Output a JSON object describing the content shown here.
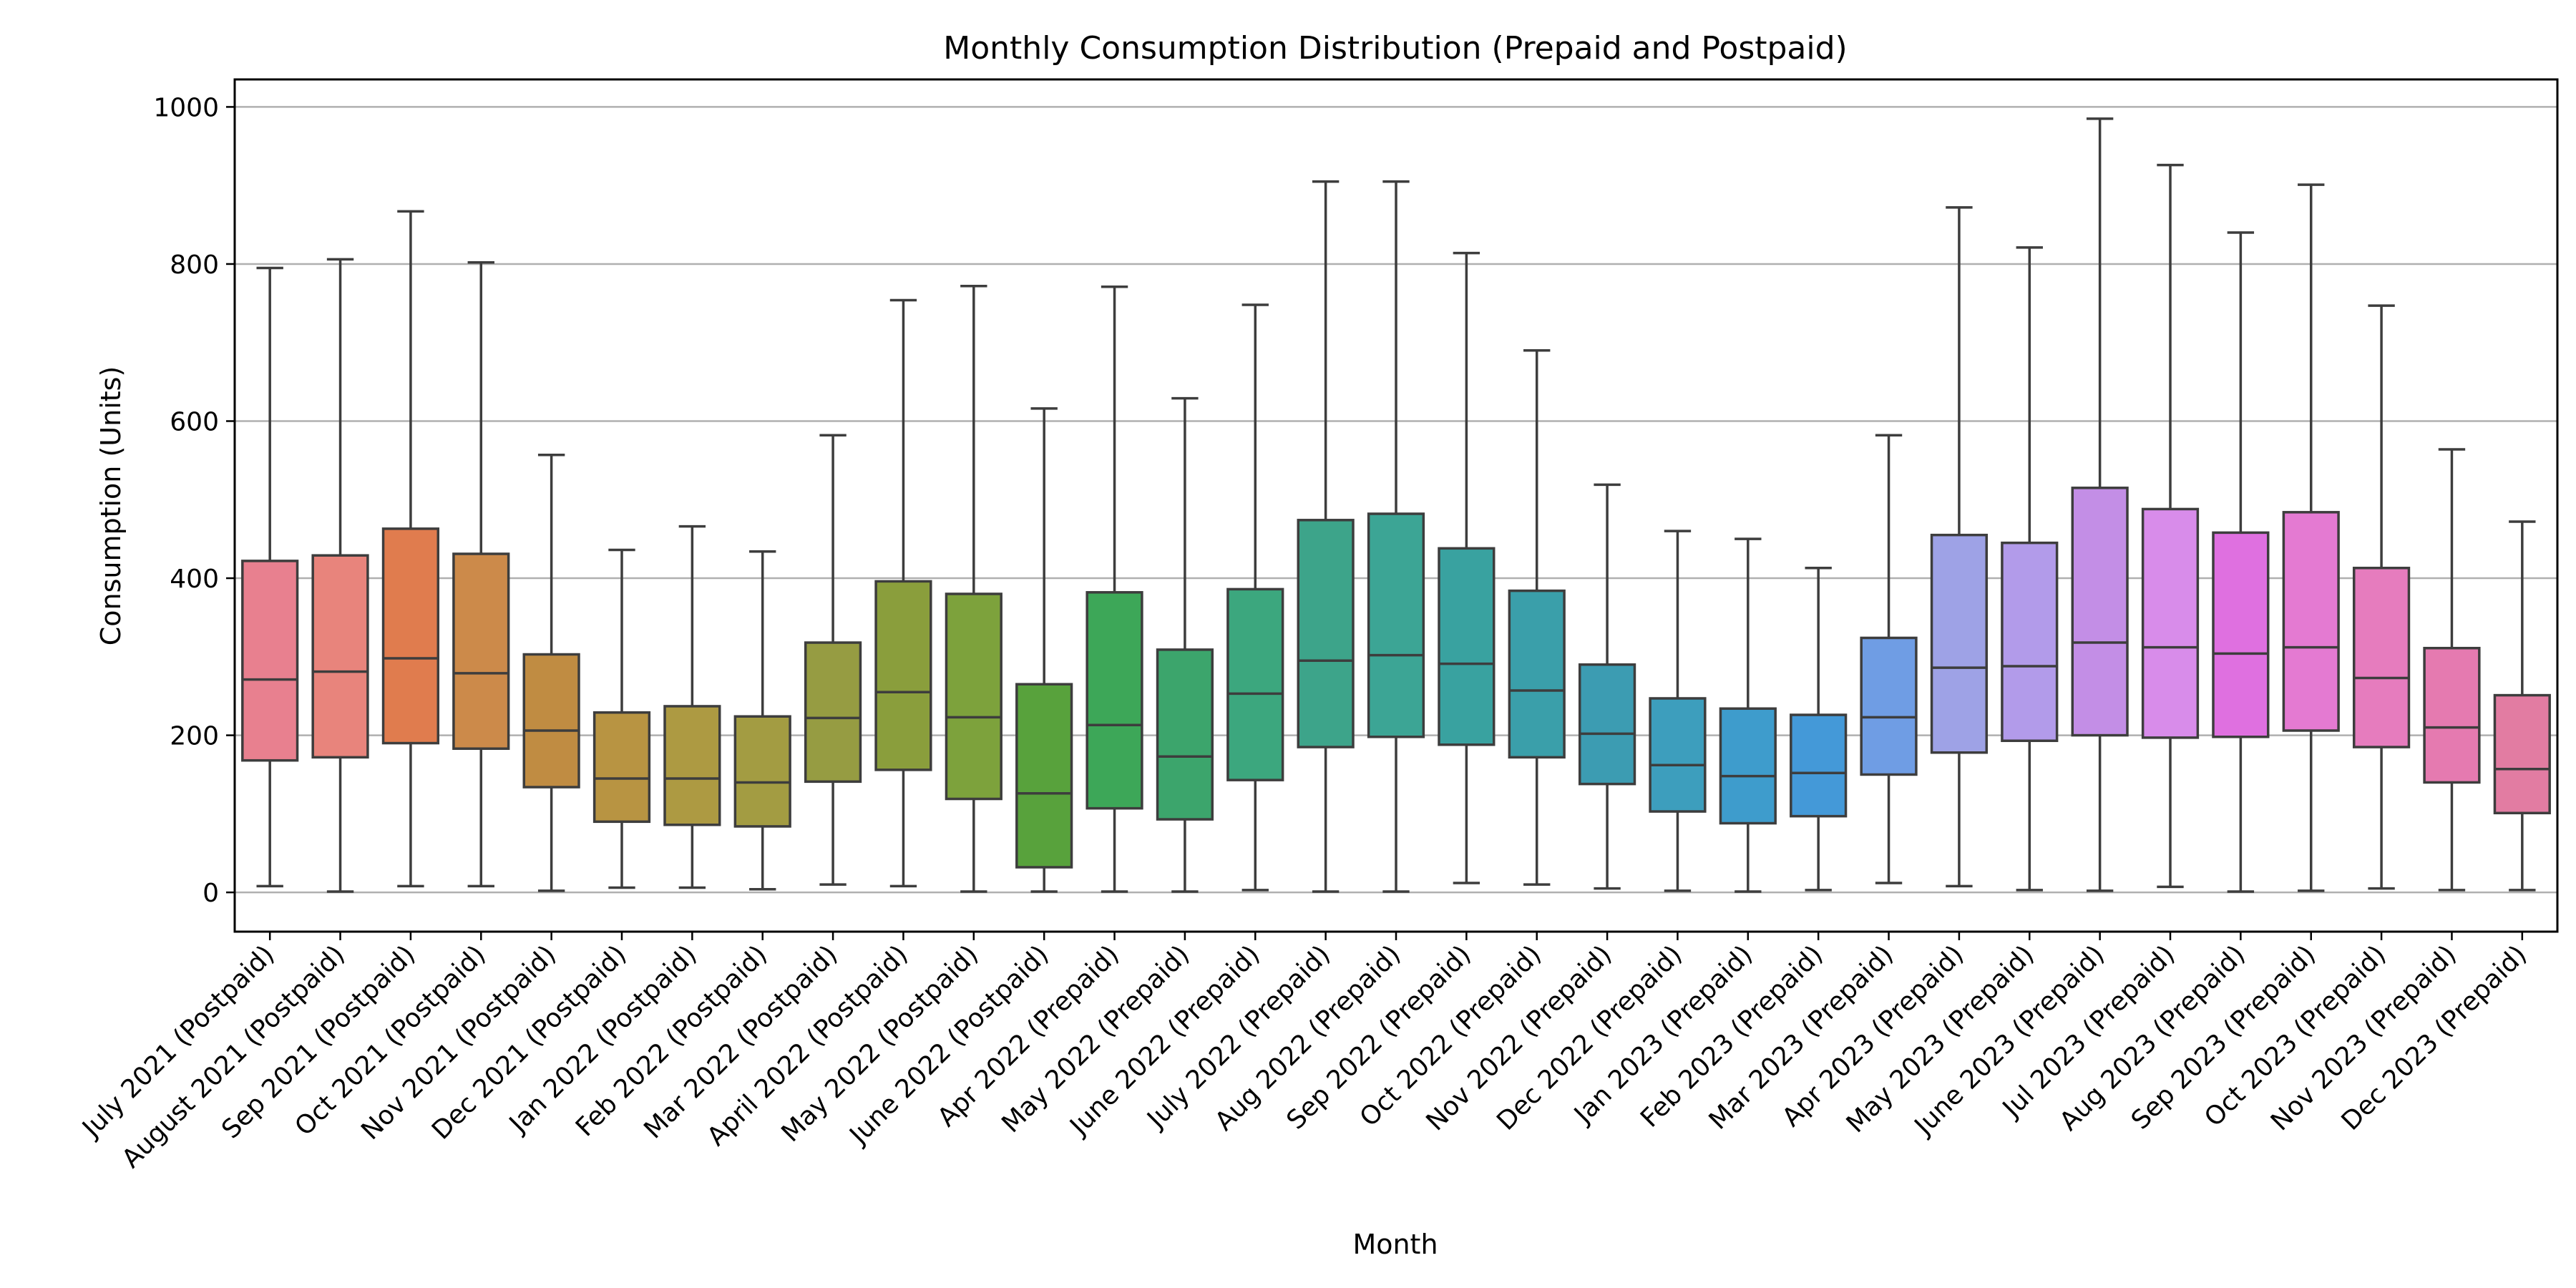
{
  "chart_data": {
    "type": "boxplot",
    "title": "Monthly Consumption Distribution (Prepaid and Postpaid)",
    "xlabel": "Month",
    "ylabel": "Consumption (Units)",
    "ylim": [
      -50,
      1035
    ],
    "yticks": [
      0,
      200,
      400,
      600,
      800,
      1000
    ],
    "grid": "horizontal",
    "categories": [
      "July 2021 (Postpaid)",
      "August 2021 (Postpaid)",
      "Sep 2021 (Postpaid)",
      "Oct 2021 (Postpaid)",
      "Nov 2021 (Postpaid)",
      "Dec 2021 (Postpaid)",
      "Jan 2022 (Postpaid)",
      "Feb 2022 (Postpaid)",
      "Mar 2022 (Postpaid)",
      "April 2022 (Postpaid)",
      "May 2022 (Postpaid)",
      "June 2022 (Postpaid)",
      "Apr 2022 (Prepaid)",
      "May 2022 (Prepaid)",
      "June 2022 (Prepaid)",
      "July 2022 (Prepaid)",
      "Aug 2022 (Prepaid)",
      "Sep 2022 (Prepaid)",
      "Oct 2022 (Prepaid)",
      "Nov 2022 (Prepaid)",
      "Dec 2022 (Prepaid)",
      "Jan 2023 (Prepaid)",
      "Feb 2023 (Prepaid)",
      "Mar 2023 (Prepaid)",
      "Apr 2023 (Prepaid)",
      "May 2023 (Prepaid)",
      "June 2023 (Prepaid)",
      "Jul 2023 (Prepaid)",
      "Aug 2023 (Prepaid)",
      "Sep 2023 (Prepaid)",
      "Oct 2023 (Prepaid)",
      "Nov 2023 (Prepaid)",
      "Dec 2023 (Prepaid)"
    ],
    "boxes": [
      {
        "min": 8,
        "q1": 168,
        "median": 271,
        "q3": 422,
        "max": 795
      },
      {
        "min": 1,
        "q1": 172,
        "median": 281,
        "q3": 429,
        "max": 806
      },
      {
        "min": 8,
        "q1": 190,
        "median": 298,
        "q3": 463,
        "max": 867
      },
      {
        "min": 8,
        "q1": 183,
        "median": 279,
        "q3": 431,
        "max": 802
      },
      {
        "min": 2,
        "q1": 134,
        "median": 206,
        "q3": 303,
        "max": 557
      },
      {
        "min": 6,
        "q1": 90,
        "median": 145,
        "q3": 229,
        "max": 436
      },
      {
        "min": 6,
        "q1": 86,
        "median": 145,
        "q3": 237,
        "max": 466
      },
      {
        "min": 4,
        "q1": 84,
        "median": 140,
        "q3": 224,
        "max": 434
      },
      {
        "min": 10,
        "q1": 141,
        "median": 222,
        "q3": 318,
        "max": 582
      },
      {
        "min": 8,
        "q1": 156,
        "median": 255,
        "q3": 396,
        "max": 754
      },
      {
        "min": 1,
        "q1": 119,
        "median": 223,
        "q3": 380,
        "max": 772
      },
      {
        "min": 1,
        "q1": 32,
        "median": 126,
        "q3": 265,
        "max": 616
      },
      {
        "min": 1,
        "q1": 107,
        "median": 213,
        "q3": 382,
        "max": 771
      },
      {
        "min": 1,
        "q1": 93,
        "median": 173,
        "q3": 309,
        "max": 629
      },
      {
        "min": 3,
        "q1": 143,
        "median": 253,
        "q3": 386,
        "max": 748
      },
      {
        "min": 1,
        "q1": 185,
        "median": 295,
        "q3": 474,
        "max": 905
      },
      {
        "min": 1,
        "q1": 198,
        "median": 302,
        "q3": 482,
        "max": 905
      },
      {
        "min": 12,
        "q1": 188,
        "median": 291,
        "q3": 438,
        "max": 814
      },
      {
        "min": 10,
        "q1": 172,
        "median": 257,
        "q3": 384,
        "max": 690
      },
      {
        "min": 5,
        "q1": 138,
        "median": 202,
        "q3": 290,
        "max": 519
      },
      {
        "min": 2,
        "q1": 103,
        "median": 162,
        "q3": 247,
        "max": 460
      },
      {
        "min": 1,
        "q1": 88,
        "median": 148,
        "q3": 234,
        "max": 450
      },
      {
        "min": 3,
        "q1": 97,
        "median": 152,
        "q3": 226,
        "max": 413
      },
      {
        "min": 12,
        "q1": 150,
        "median": 223,
        "q3": 324,
        "max": 582
      },
      {
        "min": 8,
        "q1": 178,
        "median": 286,
        "q3": 455,
        "max": 872
      },
      {
        "min": 3,
        "q1": 193,
        "median": 288,
        "q3": 445,
        "max": 821
      },
      {
        "min": 2,
        "q1": 200,
        "median": 318,
        "q3": 515,
        "max": 985
      },
      {
        "min": 7,
        "q1": 197,
        "median": 312,
        "q3": 488,
        "max": 926
      },
      {
        "min": 1,
        "q1": 198,
        "median": 304,
        "q3": 458,
        "max": 840
      },
      {
        "min": 2,
        "q1": 206,
        "median": 312,
        "q3": 484,
        "max": 901
      },
      {
        "min": 5,
        "q1": 185,
        "median": 273,
        "q3": 413,
        "max": 747
      },
      {
        "min": 3,
        "q1": 140,
        "median": 210,
        "q3": 311,
        "max": 564
      },
      {
        "min": 3,
        "q1": 101,
        "median": 157,
        "q3": 251,
        "max": 472
      }
    ],
    "colors": [
      "#e8808f",
      "#e8847c",
      "#e07c4e",
      "#cc8a4a",
      "#c08c42",
      "#b89442",
      "#ad9a42",
      "#a39c42",
      "#969c42",
      "#8a9e3c",
      "#7da23c",
      "#58a23c",
      "#3da758",
      "#3ca56c",
      "#3ca77e",
      "#3da48a",
      "#3ca595",
      "#39a2a0",
      "#3a9faa",
      "#3c9cb2",
      "#3d9ebd",
      "#3e9ccc",
      "#4499d8",
      "#6f9de4",
      "#9ea2e6",
      "#b29bea",
      "#c38ee6",
      "#d88cea",
      "#df70e0",
      "#e47ad2",
      "#e67cbe",
      "#e57ab0",
      "#e27ca2"
    ]
  }
}
